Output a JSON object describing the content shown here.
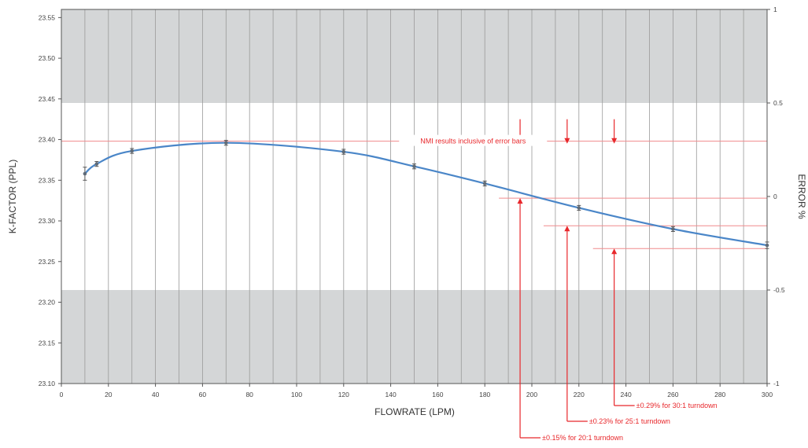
{
  "chart_data": {
    "type": "line",
    "title": "",
    "xlabel": "FLOWRATE (LPM)",
    "ylabel": "K-FACTOR (PPL)",
    "y2label": "ERROR %",
    "xlim": [
      0,
      300
    ],
    "ylim": [
      23.1,
      23.56
    ],
    "y2lim": [
      -1,
      1
    ],
    "x_ticks": [
      0,
      20,
      40,
      60,
      80,
      100,
      120,
      140,
      160,
      180,
      200,
      220,
      240,
      260,
      280,
      300
    ],
    "y_ticks": [
      23.1,
      23.15,
      23.2,
      23.25,
      23.3,
      23.35,
      23.4,
      23.45,
      23.5,
      23.55
    ],
    "y2_ticks": [
      -1,
      -0.5,
      0,
      0.5,
      1
    ],
    "grid": "vertical",
    "series": [
      {
        "name": "",
        "color": "#4a86c8",
        "x": [
          10,
          15,
          30,
          70,
          120,
          150,
          180,
          220,
          260,
          300
        ],
        "y": [
          23.358,
          23.37,
          23.386,
          23.396,
          23.385,
          23.367,
          23.346,
          23.316,
          23.29,
          23.27
        ],
        "err": [
          0.008,
          0.003,
          0.003,
          0.003,
          0.003,
          0.003,
          0.003,
          0.003,
          0.003,
          0.004
        ]
      }
    ],
    "shaded_bands": [
      {
        "y2_from": 0.5,
        "y2_to": 1.0,
        "color": "#d4d6d7"
      },
      {
        "y2_from": -1.0,
        "y2_to": -0.5,
        "color": "#d4d6d7"
      }
    ],
    "reference_lines": [
      {
        "y": 23.398,
        "x_from": 0,
        "x_to": 300
      },
      {
        "y": 23.328,
        "x_from": 186,
        "x_to": 300
      },
      {
        "y": 23.294,
        "x_from": 205,
        "x_to": 300
      },
      {
        "y": 23.266,
        "x_from": 226,
        "x_to": 300
      }
    ],
    "down_arrows": [
      {
        "x": 195,
        "y_from": 23.425,
        "y_to": 23.395
      },
      {
        "x": 215,
        "y_from": 23.425,
        "y_to": 23.395
      },
      {
        "x": 235,
        "y_from": 23.425,
        "y_to": 23.395
      }
    ],
    "annotation_color": "#e8272b",
    "annotations": [
      {
        "text": "NMI results inclusive of error bars",
        "x": 175,
        "y": 23.398
      },
      {
        "text": "±0.15% for 20:1 turndown",
        "arrow_x": 195,
        "arrow_tip_y": 23.328
      },
      {
        "text": "±0.23% for 25:1 turndown",
        "arrow_x": 215,
        "arrow_tip_y": 23.294
      },
      {
        "text": "±0.29% for 30:1 turndown",
        "arrow_x": 235,
        "arrow_tip_y": 23.266
      }
    ]
  }
}
